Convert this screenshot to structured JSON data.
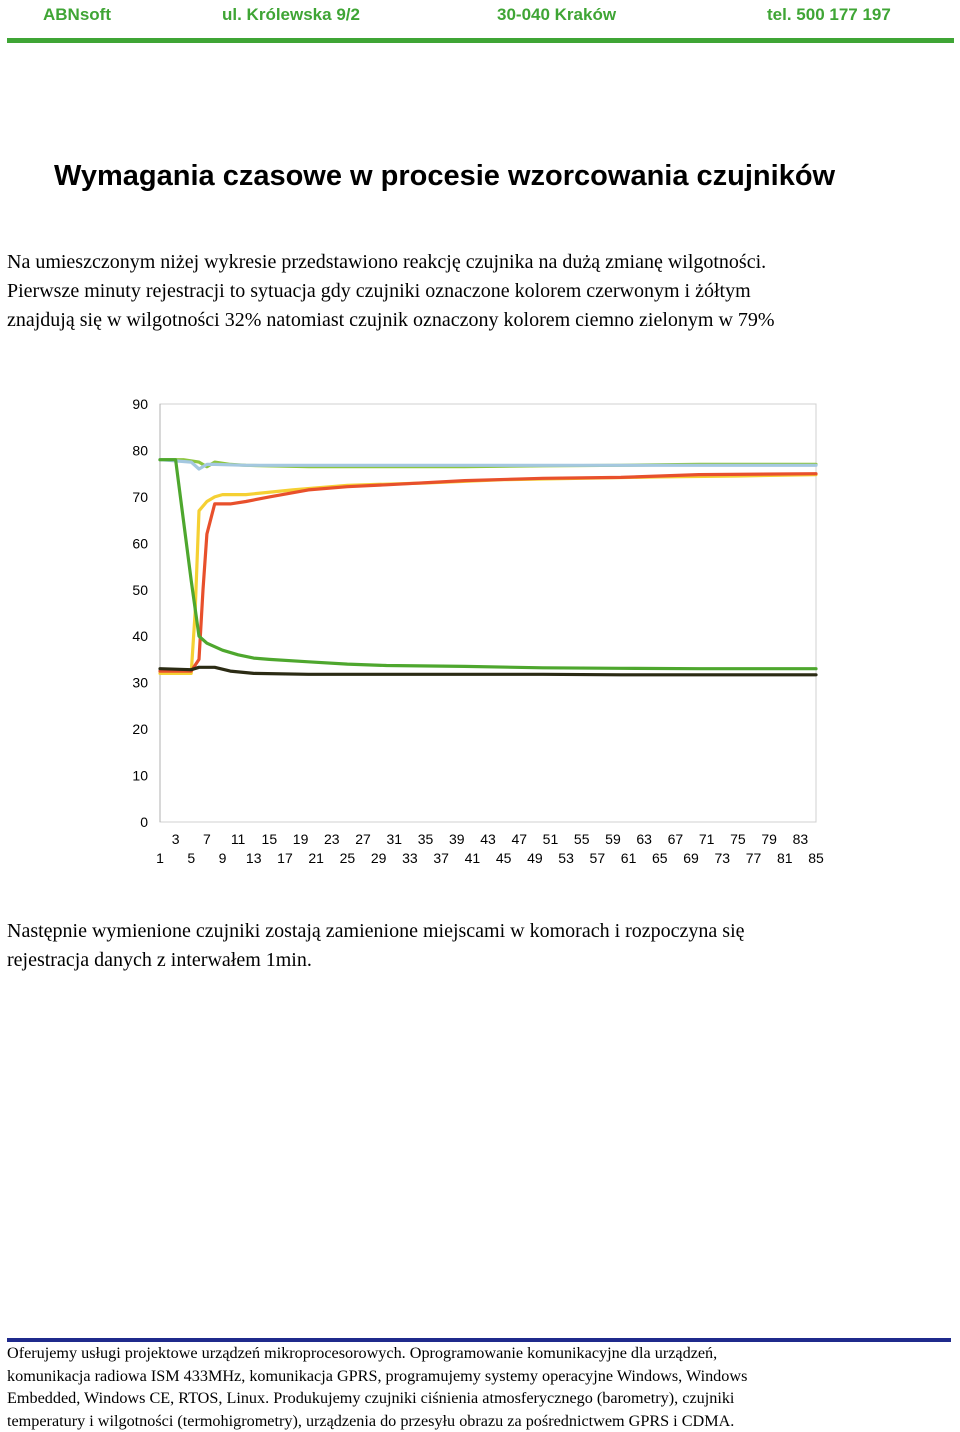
{
  "header": {
    "company": "ABNsoft",
    "street": "ul. Królewska 9/2",
    "city": "30-040 Kraków",
    "phone": "tel. 500 177 197"
  },
  "title": "Wymagania czasowe w procesie wzorcowania czujników",
  "intro_lines": [
    "Na umieszczonym niżej wykresie przedstawiono reakcję czujnika na dużą zmianę wilgotności.",
    "Pierwsze minuty rejestracji to sytuacja gdy czujniki oznaczone kolorem czerwonym i żółtym",
    "znajdują się w wilgotności 32%  natomiast czujnik oznaczony kolorem ciemno zielonym w 79%"
  ],
  "after_lines": [
    "Następnie wymienione czujniki zostają zamienione miejscami w komorach i rozpoczyna się",
    "rejestracja danych z interwałem 1min."
  ],
  "footer_lines": [
    "Oferujemy usługi projektowe urządzeń mikroprocesorowych. Oprogramowanie komunikacyjne dla urządzeń,",
    "komunikacja radiowa ISM 433MHz, komunikacja GPRS, programujemy systemy operacyjne Windows, Windows",
    "Embedded, Windows CE, RTOS, Linux. Produkujemy czujniki ciśnienia atmosferycznego (barometry), czujniki",
    "temperatury i wilgotności (termohigrometry), urządzenia do przesyłu obrazu za pośrednictwem GPRS i CDMA."
  ],
  "chart_data": {
    "type": "line",
    "title": "",
    "xlabel": "",
    "ylabel": "",
    "ylim": [
      0,
      90
    ],
    "yticks": [
      "0",
      "10",
      "20",
      "30",
      "40",
      "50",
      "60",
      "70",
      "80",
      "90"
    ],
    "xlim": [
      1,
      85
    ],
    "xticks_odd_lower": [
      "1",
      "5",
      "9",
      "13",
      "17",
      "21",
      "25",
      "29",
      "33",
      "37",
      "41",
      "45",
      "49",
      "53",
      "57",
      "61",
      "65",
      "69",
      "73",
      "77",
      "81",
      "85"
    ],
    "xticks_odd_upper": [
      "3",
      "7",
      "11",
      "15",
      "19",
      "23",
      "27",
      "31",
      "35",
      "39",
      "43",
      "47",
      "51",
      "55",
      "59",
      "63",
      "67",
      "71",
      "75",
      "79",
      "83"
    ],
    "grid": "horizontal-none",
    "legend": "none",
    "series": [
      {
        "color": "#8dc63f",
        "points": [
          [
            1,
            78
          ],
          [
            4,
            78
          ],
          [
            6,
            77.5
          ],
          [
            7,
            76.5
          ],
          [
            8,
            77.5
          ],
          [
            10,
            77
          ],
          [
            12,
            76.8
          ],
          [
            20,
            76.5
          ],
          [
            30,
            76.5
          ],
          [
            40,
            76.5
          ],
          [
            50,
            76.7
          ],
          [
            60,
            76.8
          ],
          [
            70,
            77
          ],
          [
            85,
            77
          ]
        ]
      },
      {
        "color": "#a4c8e0",
        "points": [
          [
            1,
            78
          ],
          [
            5,
            77.5
          ],
          [
            6,
            76
          ],
          [
            7,
            77
          ],
          [
            8,
            77
          ],
          [
            12,
            76.8
          ],
          [
            85,
            76.8
          ]
        ]
      },
      {
        "color": "#f5d033",
        "points": [
          [
            1,
            32
          ],
          [
            5,
            32
          ],
          [
            5.5,
            45
          ],
          [
            6,
            67
          ],
          [
            7,
            69
          ],
          [
            8,
            70
          ],
          [
            9,
            70.5
          ],
          [
            12,
            70.5
          ],
          [
            18,
            71.5
          ],
          [
            25,
            72.5
          ],
          [
            35,
            73
          ],
          [
            45,
            73.7
          ],
          [
            55,
            74
          ],
          [
            65,
            74.3
          ],
          [
            75,
            74.5
          ],
          [
            85,
            74.8
          ]
        ]
      },
      {
        "color": "#e8502c",
        "points": [
          [
            1,
            32.5
          ],
          [
            5,
            32.5
          ],
          [
            6,
            35
          ],
          [
            6.5,
            50
          ],
          [
            7,
            62
          ],
          [
            8,
            68.5
          ],
          [
            10,
            68.5
          ],
          [
            12,
            69
          ],
          [
            15,
            70
          ],
          [
            20,
            71.5
          ],
          [
            25,
            72.2
          ],
          [
            30,
            72.6
          ],
          [
            40,
            73.5
          ],
          [
            50,
            74
          ],
          [
            60,
            74.2
          ],
          [
            70,
            74.8
          ],
          [
            85,
            75
          ]
        ]
      },
      {
        "color": "#4ea72e",
        "points": [
          [
            1,
            78
          ],
          [
            3,
            78
          ],
          [
            4,
            65
          ],
          [
            5,
            52
          ],
          [
            6,
            40
          ],
          [
            7,
            38.5
          ],
          [
            9,
            37
          ],
          [
            11,
            36
          ],
          [
            13,
            35.3
          ],
          [
            15,
            35
          ],
          [
            20,
            34.5
          ],
          [
            25,
            34
          ],
          [
            30,
            33.7
          ],
          [
            40,
            33.5
          ],
          [
            50,
            33.2
          ],
          [
            60,
            33.1
          ],
          [
            70,
            33
          ],
          [
            85,
            33
          ]
        ]
      },
      {
        "color": "#2b2b14",
        "points": [
          [
            1,
            33
          ],
          [
            5,
            32.8
          ],
          [
            6,
            33.3
          ],
          [
            8,
            33.3
          ],
          [
            10,
            32.5
          ],
          [
            13,
            32
          ],
          [
            20,
            31.8
          ],
          [
            30,
            31.8
          ],
          [
            40,
            31.8
          ],
          [
            50,
            31.8
          ],
          [
            60,
            31.7
          ],
          [
            70,
            31.7
          ],
          [
            85,
            31.7
          ]
        ]
      }
    ]
  }
}
